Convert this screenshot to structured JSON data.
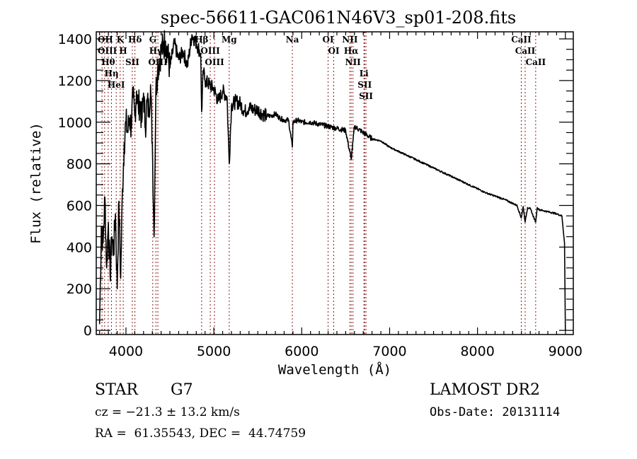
{
  "chart_data": {
    "type": "line",
    "title": "spec-56611-GAC061N46V3_sp01-208.fits",
    "xlabel": "Wavelength (Å)",
    "ylabel": "Flux (relative)",
    "xlim": [
      3662,
      9090
    ],
    "ylim": [
      -20,
      1434
    ],
    "xticks": [
      4000,
      5000,
      6000,
      7000,
      8000,
      9000
    ],
    "xtick_labels": [
      "4000",
      "5000",
      "6000",
      "7000",
      "8000",
      "9000"
    ],
    "yticks": [
      0,
      200,
      400,
      600,
      800,
      1000,
      1200,
      1400
    ],
    "ytick_labels": [
      "0",
      "200",
      "400",
      "600",
      "800",
      "1000",
      "1200",
      "1400"
    ],
    "grid": false,
    "series": [
      {
        "name": "flux",
        "color": "#000000",
        "x": [
          3700,
          3720,
          3740,
          3760,
          3780,
          3800,
          3820,
          3840,
          3860,
          3880,
          3900,
          3920,
          3940,
          3960,
          3980,
          4000,
          4020,
          4040,
          4060,
          4080,
          4100,
          4120,
          4140,
          4160,
          4180,
          4200,
          4220,
          4240,
          4260,
          4280,
          4300,
          4320,
          4340,
          4360,
          4380,
          4400,
          4450,
          4500,
          4550,
          4600,
          4650,
          4700,
          4750,
          4800,
          4850,
          4861,
          4880,
          4900,
          4950,
          5000,
          5050,
          5100,
          5150,
          5175,
          5200,
          5250,
          5300,
          5350,
          5400,
          5450,
          5500,
          5550,
          5600,
          5650,
          5700,
          5750,
          5800,
          5850,
          5893,
          5900,
          5950,
          6000,
          6100,
          6200,
          6300,
          6400,
          6500,
          6563,
          6600,
          6700,
          6800,
          6900,
          7000,
          7100,
          7200,
          7300,
          7400,
          7500,
          7600,
          7700,
          7800,
          7900,
          8000,
          8100,
          8200,
          8300,
          8400,
          8450,
          8498,
          8520,
          8542,
          8570,
          8600,
          8662,
          8680,
          8700,
          8800,
          8900,
          8960,
          8990,
          9000
        ],
        "y": [
          30,
          500,
          420,
          640,
          300,
          520,
          260,
          450,
          380,
          560,
          200,
          620,
          250,
          680,
          900,
          1000,
          950,
          1020,
          980,
          1120,
          1030,
          1150,
          1070,
          1100,
          1000,
          1140,
          980,
          1100,
          1050,
          1180,
          900,
          450,
          1150,
          1250,
          1300,
          1340,
          1390,
          1260,
          1380,
          1300,
          1340,
          1270,
          1420,
          1380,
          1330,
          1050,
          1250,
          1200,
          1180,
          1160,
          1100,
          1150,
          1120,
          800,
          1080,
          1100,
          1090,
          1050,
          1070,
          1060,
          1060,
          1040,
          1030,
          1030,
          1040,
          1020,
          1010,
          1010,
          880,
          1000,
          1010,
          1000,
          1000,
          990,
          980,
          970,
          960,
          820,
          980,
          950,
          920,
          910,
          880,
          860,
          840,
          820,
          800,
          780,
          760,
          740,
          720,
          700,
          680,
          660,
          645,
          630,
          610,
          600,
          540,
          595,
          520,
          590,
          585,
          520,
          590,
          580,
          570,
          560,
          550,
          420,
          0
        ]
      }
    ],
    "line_markers": {
      "color": "#8b1a1a",
      "lines": [
        {
          "label": "Hθ",
          "wavelength": 3798
        },
        {
          "label": "OII",
          "wavelength": 3727
        },
        {
          "label": "OIII",
          "wavelength": 3757
        },
        {
          "label": "HeI",
          "wavelength": 3889
        },
        {
          "label": "Hη",
          "wavelength": 3835
        },
        {
          "label": "K",
          "wavelength": 3934
        },
        {
          "label": "H",
          "wavelength": 3969
        },
        {
          "label": "SII",
          "wavelength": 4072
        },
        {
          "label": "Hδ",
          "wavelength": 4102
        },
        {
          "label": "OIII",
          "wavelength": 4363
        },
        {
          "label": "Hγ",
          "wavelength": 4341
        },
        {
          "label": "G",
          "wavelength": 4305
        },
        {
          "label": "Hβ",
          "wavelength": 4861
        },
        {
          "label": "OIII",
          "wavelength": 5007
        },
        {
          "label": "OIII",
          "wavelength": 4959
        },
        {
          "label": "Mg",
          "wavelength": 5175
        },
        {
          "label": "Na",
          "wavelength": 5893
        },
        {
          "label": "OI",
          "wavelength": 6300
        },
        {
          "label": "OI",
          "wavelength": 6364
        },
        {
          "label": "Hα",
          "wavelength": 6563
        },
        {
          "label": "NII",
          "wavelength": 6548
        },
        {
          "label": "NII",
          "wavelength": 6583
        },
        {
          "label": "SII",
          "wavelength": 6716
        },
        {
          "label": "Li",
          "wavelength": 6708
        },
        {
          "label": "SII",
          "wavelength": 6731
        },
        {
          "label": "CaII",
          "wavelength": 8542
        },
        {
          "label": "CaII",
          "wavelength": 8498
        },
        {
          "label": "CaII",
          "wavelength": 8662
        }
      ]
    }
  },
  "info": {
    "object_class": "STAR",
    "subclass": "G7",
    "redshift_text": "cz = −21.3 ± 13.2 km/s",
    "coords_text": "RA =  61.35543, DEC =  44.74759",
    "survey": "LAMOST DR2",
    "obs_date_text": "Obs-Date: 20131114"
  }
}
